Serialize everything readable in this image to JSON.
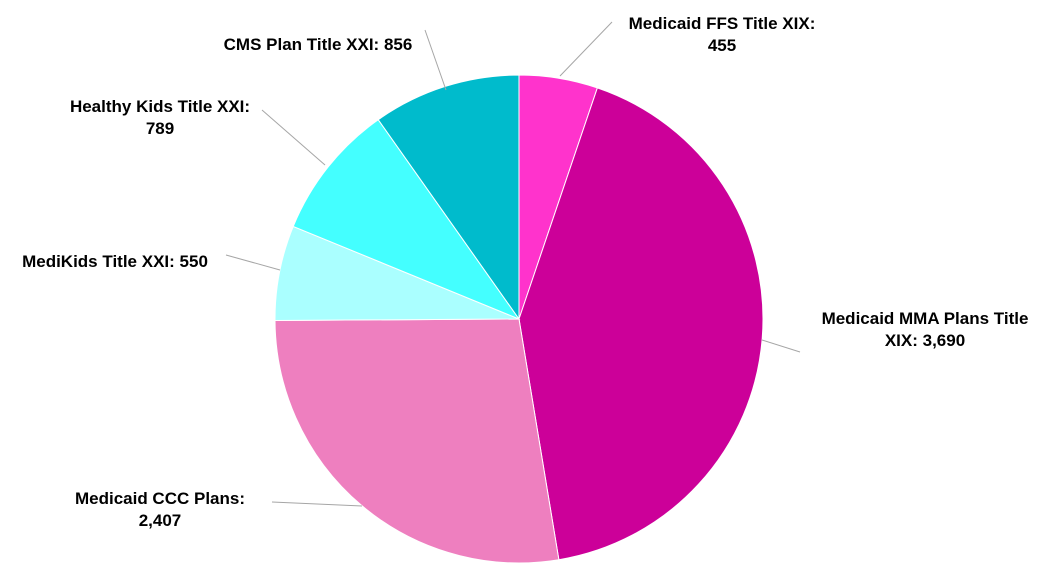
{
  "chart_data": {
    "type": "pie",
    "categories": [
      "Medicaid FFS Title XIX:",
      "Medicaid MMA Plans Title XIX:",
      "Medicaid CCC Plans:",
      "MediKids Title XXI:",
      "Healthy Kids Title XXI:",
      "CMS Plan Title XXI:"
    ],
    "values": [
      455,
      3690,
      2407,
      550,
      789,
      856
    ],
    "value_labels": [
      "455",
      "3,690",
      "2,407",
      "550",
      "789",
      "856"
    ],
    "colors": [
      "#ff33cc",
      "#cc0099",
      "#ee7fbf",
      "#aaffff",
      "#44ffff",
      "#00bbcc"
    ]
  }
}
